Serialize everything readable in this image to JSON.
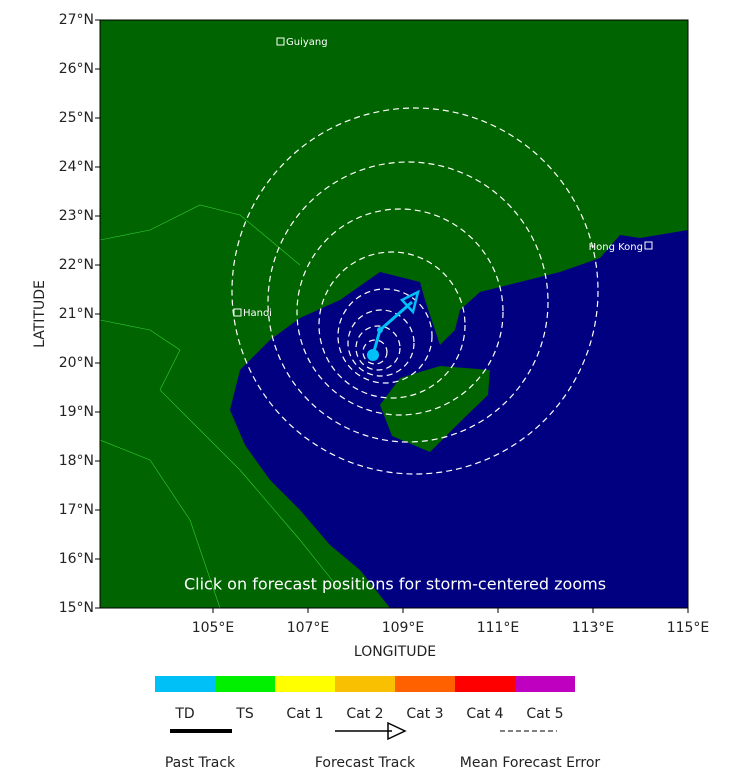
{
  "map": {
    "x_label": "LONGITUDE",
    "y_label": "LATITUDE",
    "lat_ticks": [
      "27°N",
      "26°N",
      "25°N",
      "24°N",
      "23°N",
      "22°N",
      "21°N",
      "20°N",
      "19°N",
      "18°N",
      "17°N",
      "16°N",
      "15°N"
    ],
    "lon_ticks": [
      "105°E",
      "107°E",
      "109°E",
      "111°E",
      "113°E",
      "115°E"
    ],
    "cities": [
      "Guiyang",
      "Hanoi",
      "Hong Kong"
    ],
    "note": "Click on forecast positions for storm-centered zooms"
  },
  "legend": {
    "intensity": [
      {
        "label": "TD",
        "color": "#00c0f8"
      },
      {
        "label": "TS",
        "color": "#00f000"
      },
      {
        "label": "Cat 1",
        "color": "#ffff00"
      },
      {
        "label": "Cat 2",
        "color": "#f8c000"
      },
      {
        "label": "Cat 3",
        "color": "#ff6000"
      },
      {
        "label": "Cat 4",
        "color": "#ff0000"
      },
      {
        "label": "Cat 5",
        "color": "#c000c0"
      }
    ],
    "lines": [
      "Past Track",
      "Forecast Track",
      "Mean Forecast Error"
    ]
  }
}
